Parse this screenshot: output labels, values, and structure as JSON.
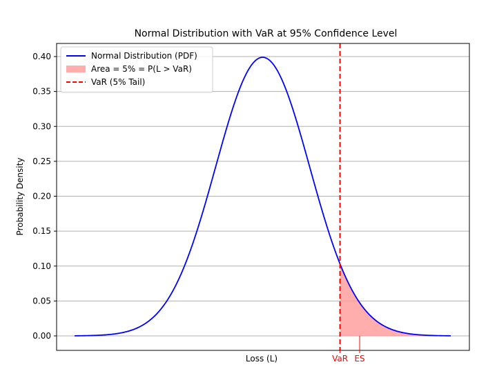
{
  "chart_data": {
    "type": "area",
    "title": "Normal Distribution with VaR at 95% Confidence Level",
    "xlabel": "Loss (L)",
    "ylabel": "Probability Density",
    "xlim": [
      -4.0,
      4.0
    ],
    "ylim": [
      0.0,
      0.42
    ],
    "yticks": [
      {
        "value": 0.0,
        "label": "0.00"
      },
      {
        "value": 0.05,
        "label": "0.05"
      },
      {
        "value": 0.1,
        "label": "0.10"
      },
      {
        "value": 0.15,
        "label": "0.15"
      },
      {
        "value": 0.2,
        "label": "0.20"
      },
      {
        "value": 0.25,
        "label": "0.25"
      },
      {
        "value": 0.3,
        "label": "0.30"
      },
      {
        "value": 0.35,
        "label": "0.35"
      },
      {
        "value": 0.4,
        "label": "0.40"
      }
    ],
    "grid": "horizontal",
    "legend_position": "top-left",
    "series": [
      {
        "name": "Normal Distribution (PDF)",
        "kind": "line",
        "color": "#0000ff",
        "mean": 0,
        "std": 1,
        "x_range": [
          -4.0,
          4.0
        ]
      }
    ],
    "shaded_area": {
      "label": "Area = 5% = P(L > VaR)",
      "color": "#ff9999",
      "from": 1.645,
      "to": 4.0
    },
    "var_line": {
      "label": "VaR (5% Tail)",
      "color": "#ff0000",
      "x": 1.645
    },
    "markers": [
      {
        "name": "VaR",
        "label": "VaR",
        "x": 1.645,
        "color": "#ff0000"
      },
      {
        "name": "ES",
        "label": "ES",
        "x": 2.063,
        "color": "#ff0000"
      }
    ],
    "legend": [
      {
        "label": "Normal Distribution (PDF)",
        "kind": "line",
        "color": "#0000ff"
      },
      {
        "label": "Area = 5% = P(L > VaR)",
        "kind": "patch",
        "color": "#ff9999"
      },
      {
        "label": "VaR (5% Tail)",
        "kind": "dashed",
        "color": "#ff0000"
      }
    ]
  }
}
